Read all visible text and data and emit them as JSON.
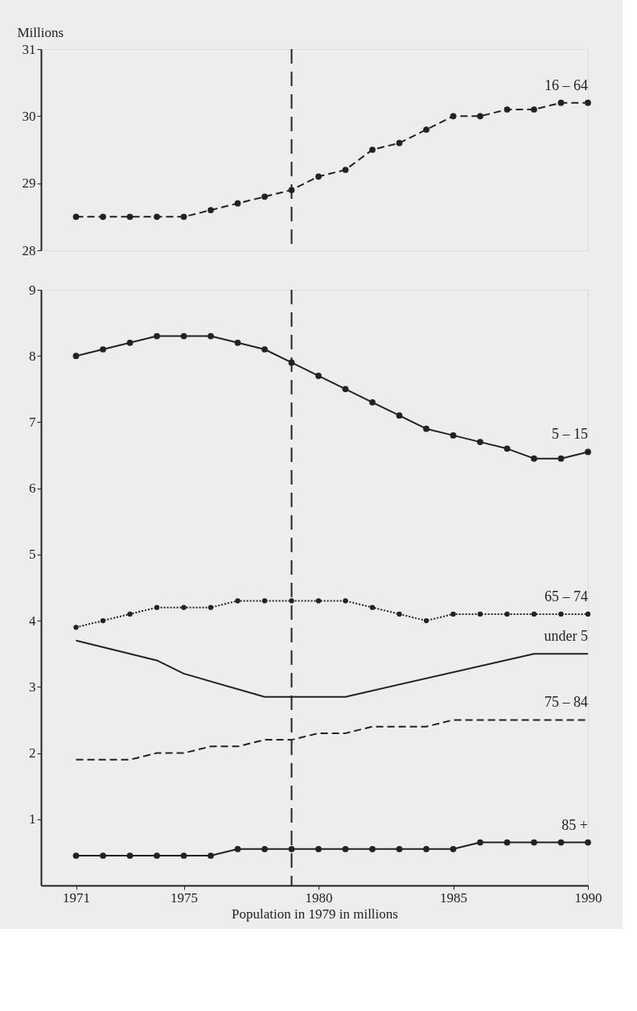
{
  "chart_data": [
    {
      "type": "line",
      "ylabel": "Millions",
      "xlim": [
        1969.7,
        1990
      ],
      "ylim": [
        28,
        31
      ],
      "yticks": [
        28,
        29,
        30,
        31
      ],
      "tick_labels": "y",
      "grid": false,
      "x": [
        1971,
        1972,
        1973,
        1974,
        1975,
        1976,
        1977,
        1978,
        1979,
        1980,
        1981,
        1982,
        1983,
        1984,
        1985,
        1986,
        1987,
        1988,
        1989,
        1990
      ],
      "ref_lines": [
        {
          "axis": "x",
          "value": 1979,
          "line_style": "dashed",
          "color": "#222222"
        }
      ],
      "series": [
        {
          "name": "16 – 64",
          "color": "#222222",
          "marker": "circle",
          "line_style": "dashed",
          "values": [
            28.5,
            28.5,
            28.5,
            28.5,
            28.5,
            28.6,
            28.7,
            28.8,
            28.9,
            29.1,
            29.2,
            29.5,
            29.6,
            29.8,
            30.0,
            30.0,
            30.1,
            30.1,
            30.2,
            30.2
          ]
        }
      ]
    },
    {
      "type": "line",
      "xlabel": "Population in 1979 in millions",
      "xlim": [
        1969.7,
        1990
      ],
      "xticks": [
        1971,
        1975,
        1980,
        1985,
        1990
      ],
      "ylim": [
        0,
        9
      ],
      "yticks": [
        1,
        2,
        3,
        4,
        5,
        6,
        7,
        8,
        9
      ],
      "grid": false,
      "x": [
        1971,
        1972,
        1973,
        1974,
        1975,
        1976,
        1977,
        1978,
        1979,
        1980,
        1981,
        1982,
        1983,
        1984,
        1985,
        1986,
        1987,
        1988,
        1989,
        1990
      ],
      "ref_lines": [
        {
          "axis": "x",
          "value": 1979,
          "line_style": "dashed",
          "color": "#222222"
        }
      ],
      "series": [
        {
          "name": "5 – 15",
          "color": "#222222",
          "marker": "circle",
          "line_style": "solid",
          "values": [
            8.0,
            8.1,
            8.2,
            8.3,
            8.3,
            8.3,
            8.2,
            8.1,
            7.9,
            7.7,
            7.5,
            7.3,
            7.1,
            6.9,
            6.8,
            6.7,
            6.6,
            6.45,
            6.45,
            6.55
          ]
        },
        {
          "name": "65 – 74",
          "color": "#222222",
          "marker": "circle",
          "line_style": "dotted",
          "values": [
            3.9,
            4.0,
            4.1,
            4.2,
            4.2,
            4.2,
            4.3,
            4.3,
            4.3,
            4.3,
            4.3,
            4.2,
            4.1,
            4.0,
            4.1,
            4.1,
            4.1,
            4.1,
            4.1,
            4.1
          ]
        },
        {
          "name": "under 5",
          "color": "#222222",
          "marker": "none",
          "line_style": "solid",
          "x": [
            1971,
            1974,
            1975,
            1978,
            1981,
            1988,
            1990
          ],
          "values": [
            3.7,
            3.4,
            3.2,
            2.85,
            2.85,
            3.5,
            3.5
          ]
        },
        {
          "name": "75 – 84",
          "color": "#222222",
          "marker": "none",
          "line_style": "dashed",
          "x": [
            1971,
            1973,
            1974,
            1975,
            1976,
            1977,
            1978,
            1979,
            1980,
            1981,
            1982,
            1984,
            1985,
            1990
          ],
          "values": [
            1.9,
            1.9,
            2.0,
            2.0,
            2.1,
            2.1,
            2.2,
            2.2,
            2.3,
            2.3,
            2.4,
            2.4,
            2.5,
            2.5
          ]
        },
        {
          "name": "85 +",
          "color": "#222222",
          "marker": "circle",
          "line_style": "solid",
          "values": [
            0.45,
            0.45,
            0.45,
            0.45,
            0.45,
            0.45,
            0.55,
            0.55,
            0.55,
            0.55,
            0.55,
            0.55,
            0.55,
            0.55,
            0.55,
            0.65,
            0.65,
            0.65,
            0.65,
            0.65
          ]
        }
      ]
    }
  ]
}
